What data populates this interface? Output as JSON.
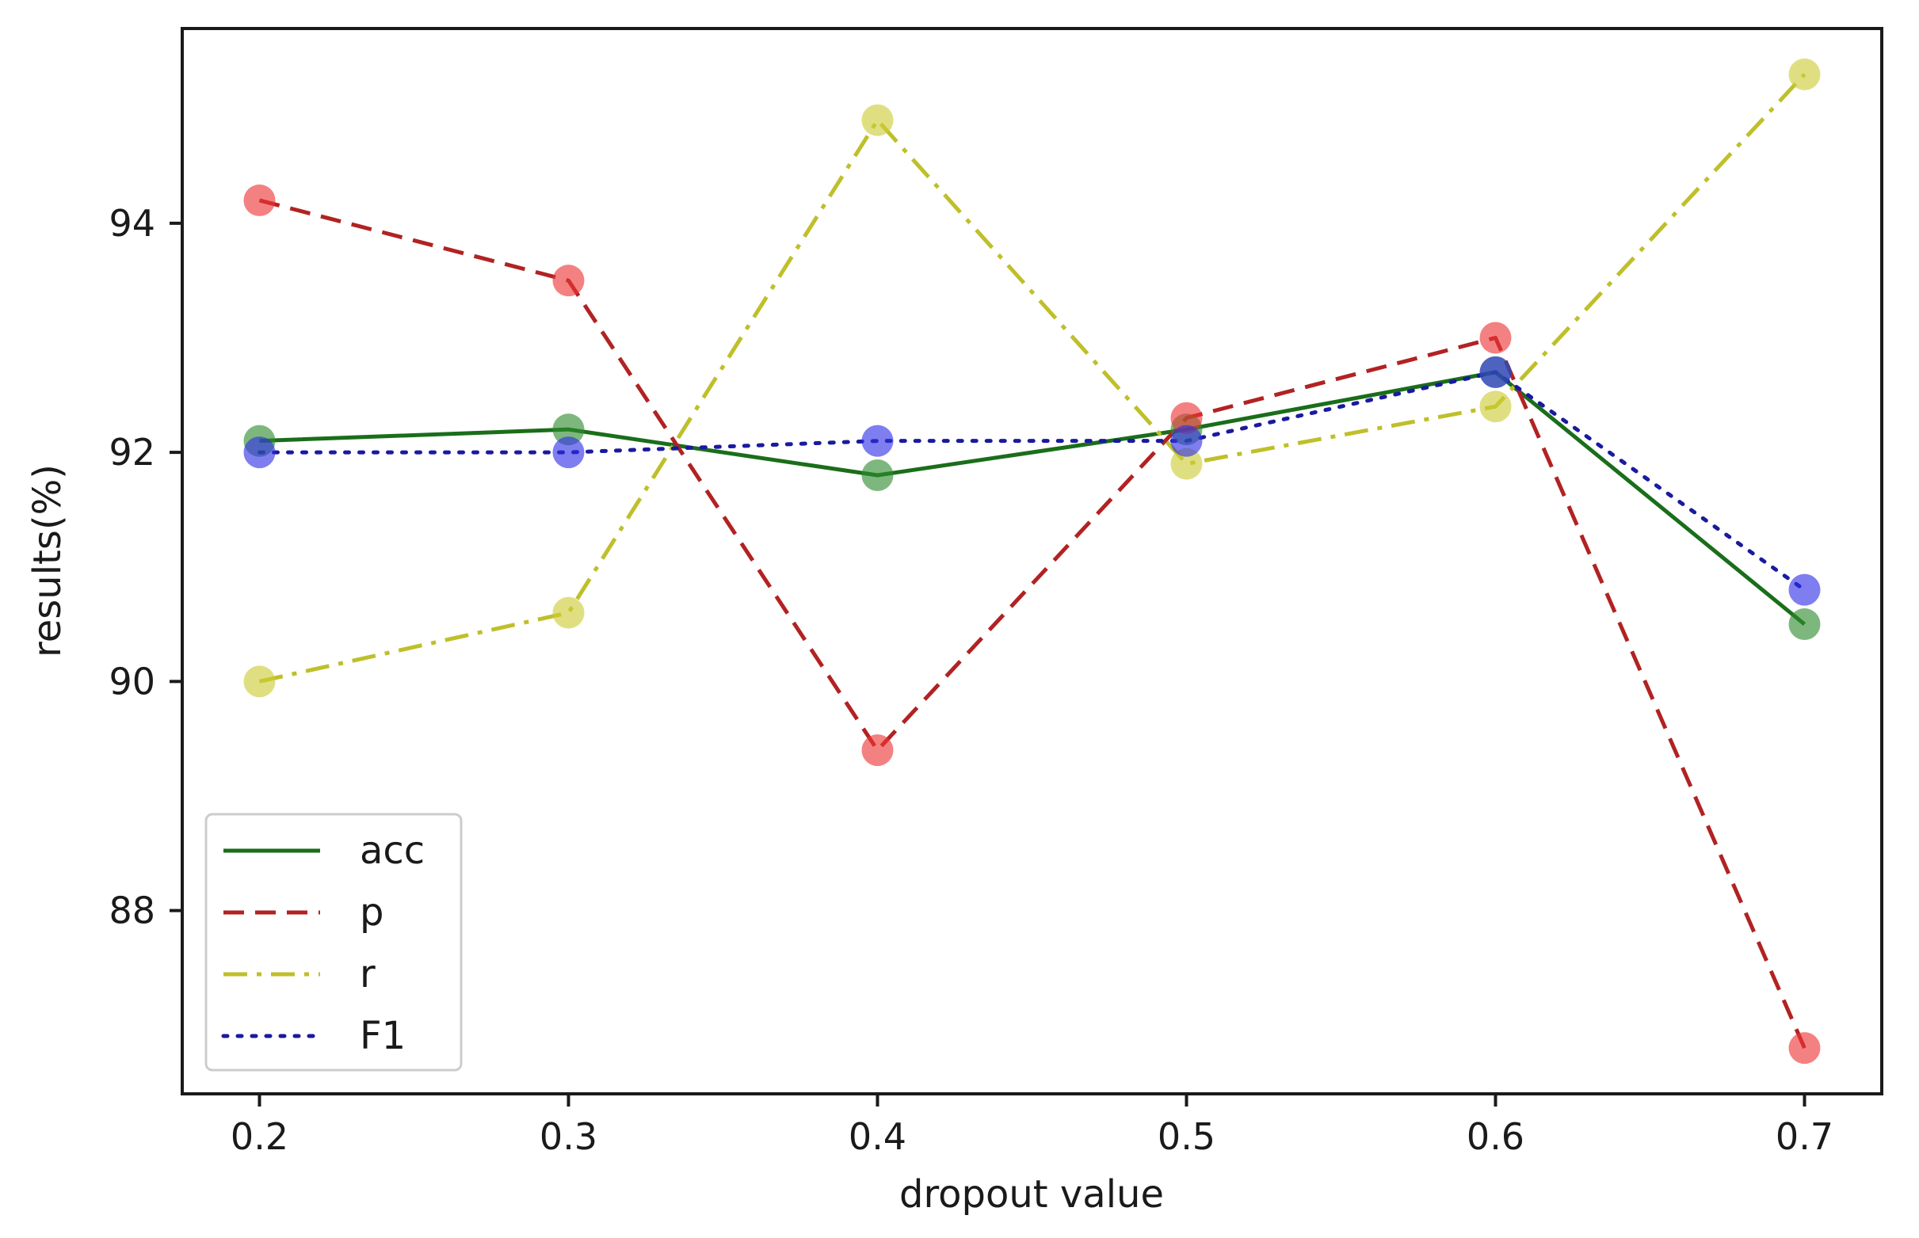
{
  "chart_data": {
    "type": "line",
    "title": "",
    "xlabel": "dropout value",
    "ylabel": "results(%)",
    "x": [
      0.2,
      0.3,
      0.4,
      0.5,
      0.6,
      0.7
    ],
    "x_tick_labels": [
      "0.2",
      "0.3",
      "0.4",
      "0.5",
      "0.6",
      "0.7"
    ],
    "y_ticks": [
      88,
      90,
      92,
      94
    ],
    "y_tick_labels": [
      "88",
      "90",
      "92",
      "94"
    ],
    "xlim": [
      0.175,
      0.725
    ],
    "ylim": [
      86.4,
      95.7
    ],
    "grid": false,
    "legend_position": "lower-left",
    "series": [
      {
        "name": "acc",
        "color": "#1a6e1a",
        "marker_color": "#2e8b2e",
        "dash": "solid",
        "values": [
          92.1,
          92.2,
          91.8,
          92.2,
          92.7,
          90.5
        ]
      },
      {
        "name": "p",
        "color": "#b22222",
        "marker_color": "#ee3333",
        "dash": "dashed",
        "values": [
          94.2,
          93.5,
          89.4,
          92.3,
          93.0,
          86.8
        ]
      },
      {
        "name": "r",
        "color": "#bfbf2a",
        "marker_color": "#cccc33",
        "dash": "dashdot",
        "values": [
          90.0,
          90.6,
          94.9,
          91.9,
          92.4,
          95.3
        ]
      },
      {
        "name": "F1",
        "color": "#1a1a9e",
        "marker_color": "#2e2ee6",
        "dash": "dotted",
        "values": [
          92.0,
          92.0,
          92.1,
          92.1,
          92.7,
          90.8
        ]
      }
    ]
  }
}
